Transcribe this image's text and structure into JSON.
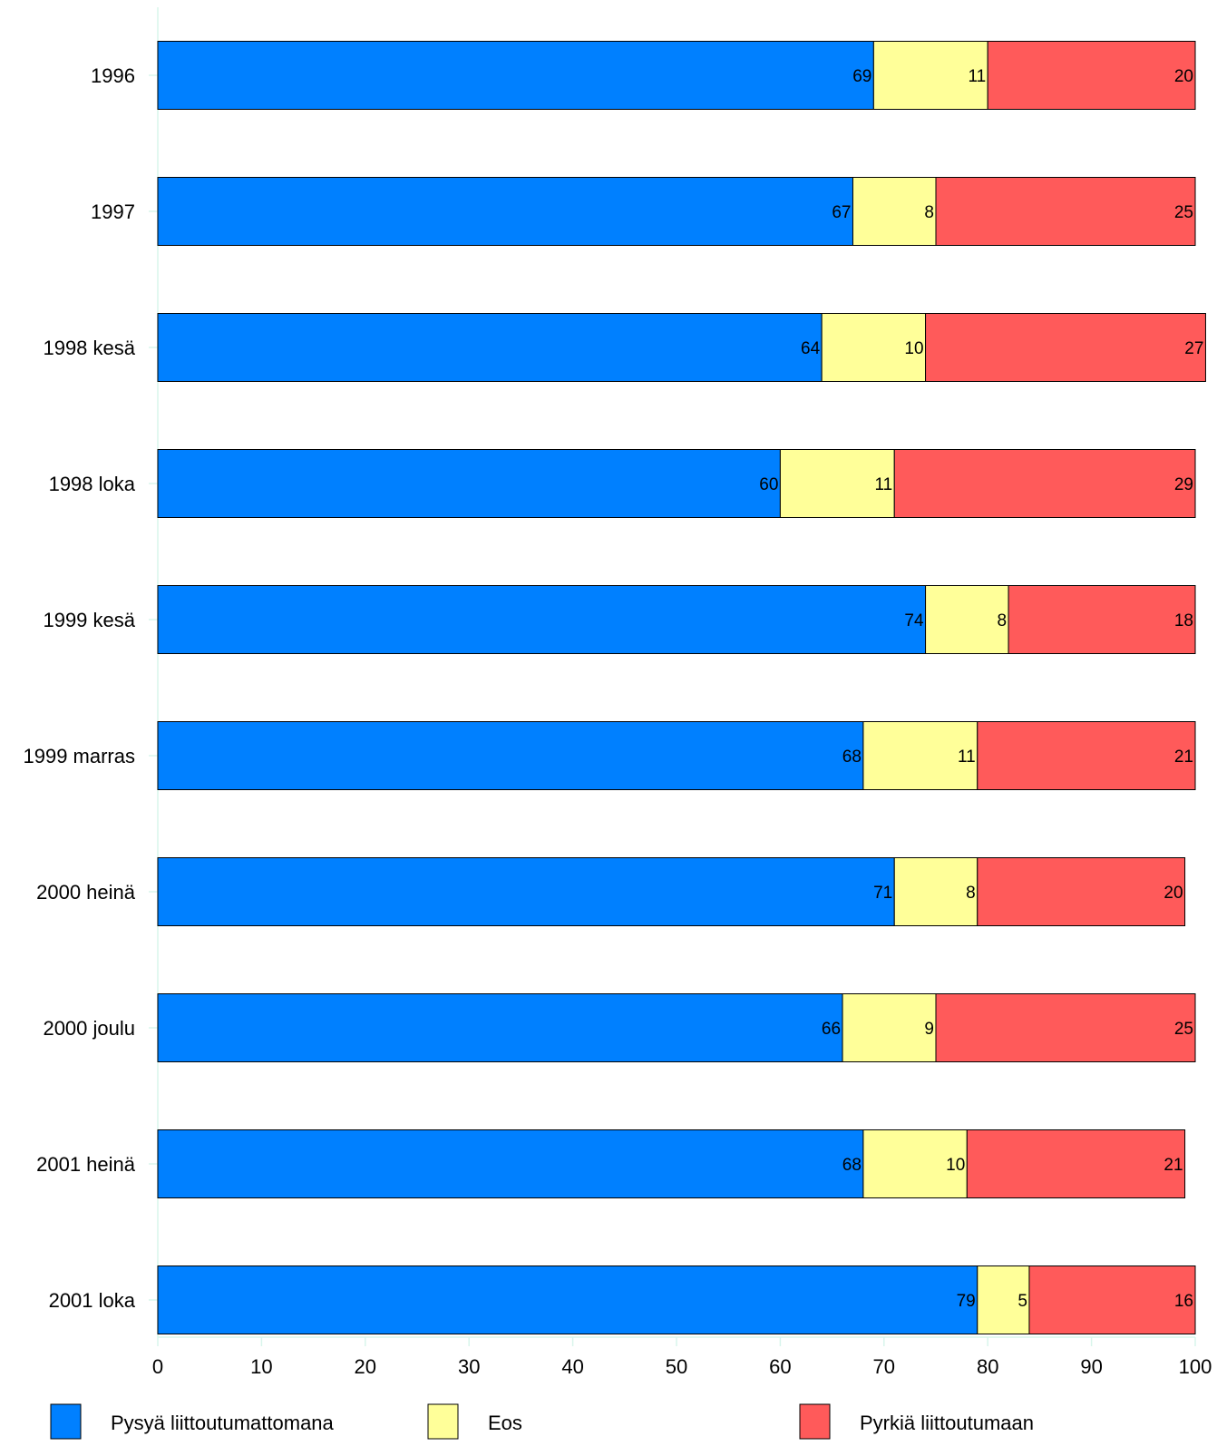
{
  "chart_data": {
    "type": "bar",
    "orientation": "horizontal",
    "stacked": true,
    "title": "",
    "xlabel": "",
    "ylabel": "",
    "xlim": [
      0,
      100
    ],
    "x_ticks": [
      "0",
      "10",
      "20",
      "30",
      "40",
      "50",
      "60",
      "70",
      "80",
      "90",
      "100"
    ],
    "grid": false,
    "legend_position": "bottom",
    "categories": [
      "1996",
      "1997",
      "1998 kesä",
      "1998 loka",
      "1999 kesä",
      "1999 marras",
      "2000 heinä",
      "2000 joulu",
      "2001 heinä",
      "2001 loka"
    ],
    "series": [
      {
        "name": "Pysyä liittoutumattomana",
        "color": "#0080ff",
        "values": [
          69,
          67,
          64,
          60,
          74,
          68,
          71,
          66,
          68,
          79
        ]
      },
      {
        "name": "Eos",
        "color": "#ffff99",
        "values": [
          11,
          8,
          10,
          11,
          8,
          11,
          8,
          9,
          10,
          5
        ]
      },
      {
        "name": "Pyrkiä liittoutumaan",
        "color": "#ff5a5a",
        "values": [
          20,
          25,
          27,
          29,
          18,
          21,
          20,
          25,
          21,
          16
        ]
      }
    ],
    "axis_color": "#d8f5ec",
    "bar_outline_color": "#000000"
  }
}
